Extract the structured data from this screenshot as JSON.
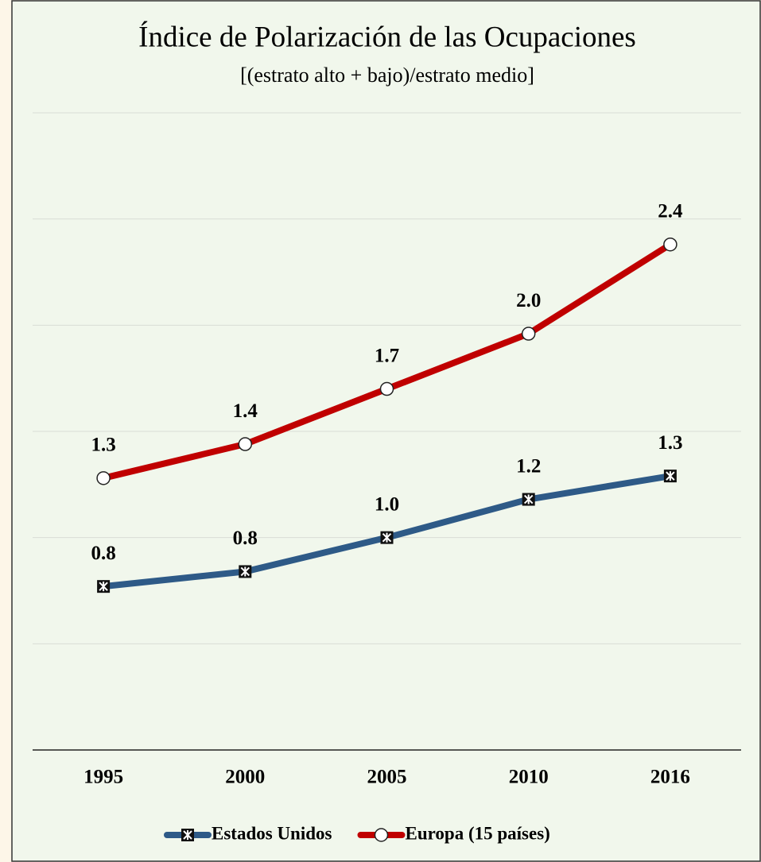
{
  "chart_data": {
    "type": "line",
    "title": "Índice de Polarización de las Ocupaciones",
    "subtitle": "[(estrato alto + bajo)/estrato medio]",
    "categories": [
      "1995",
      "2000",
      "2005",
      "2010",
      "2016"
    ],
    "series": [
      {
        "name": "Estados Unidos",
        "color": "#2e5a87",
        "marker": "x-square",
        "values": [
          0.77,
          0.84,
          1.0,
          1.18,
          1.29
        ],
        "value_labels": [
          "0.8",
          "0.8",
          "1.0",
          "1.2",
          "1.3"
        ]
      },
      {
        "name": "Europa (15 países)",
        "color": "#c00000",
        "marker": "circle",
        "values": [
          1.28,
          1.44,
          1.7,
          1.96,
          2.38
        ],
        "value_labels": [
          "1.3",
          "1.4",
          "1.7",
          "2.0",
          "2.4"
        ]
      }
    ],
    "ylim": [
      0,
      3
    ],
    "yticks": [
      0,
      0.5,
      1,
      1.5,
      2,
      2.5,
      3
    ],
    "grid": true,
    "legend": "bottom"
  }
}
